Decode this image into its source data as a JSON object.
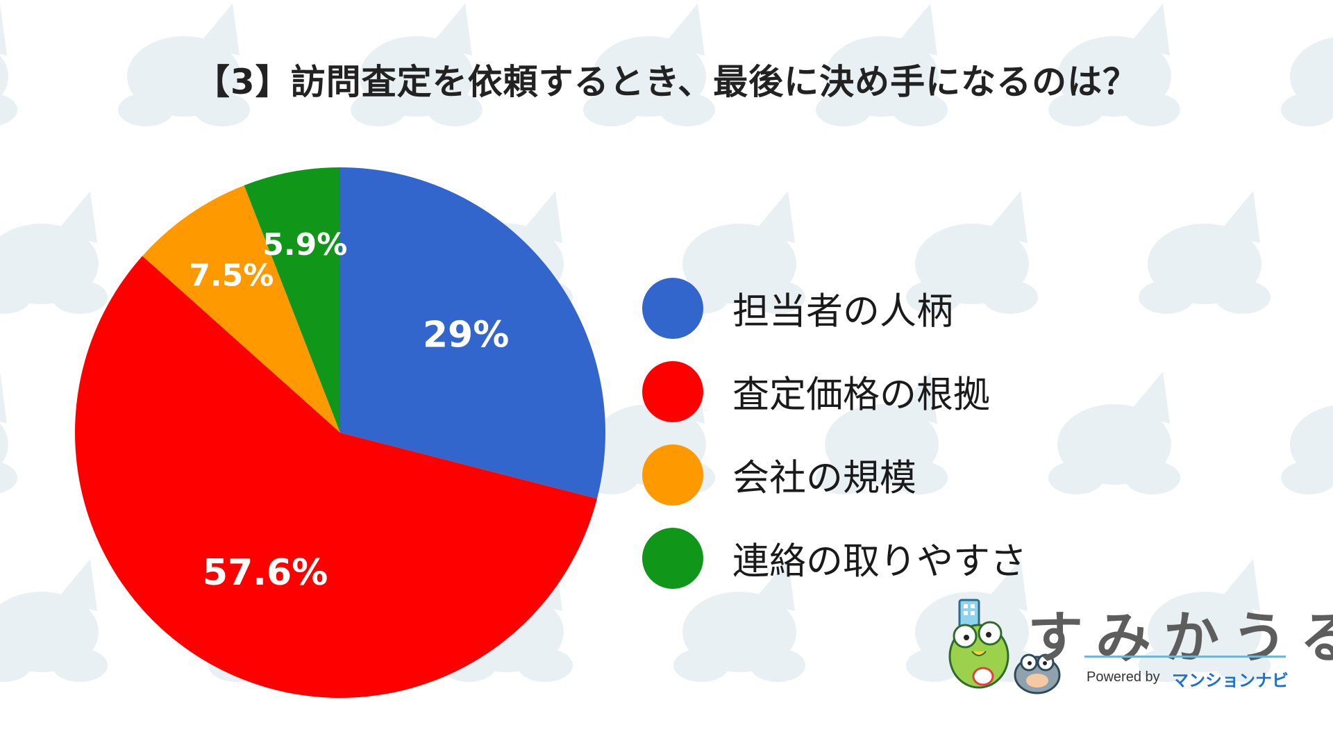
{
  "chart_data": {
    "type": "pie",
    "title": "【3】訪問査定を依頼するとき、最後に決め手になるのは？",
    "slices": [
      {
        "label": "担当者の人柄",
        "value": 29,
        "value_label": "29%",
        "color": "#3366cc"
      },
      {
        "label": "査定価格の根拠",
        "value": 57.6,
        "value_label": "57.6%",
        "color": "#ff0000"
      },
      {
        "label": "会社の規模",
        "value": 7.5,
        "value_label": "7.5%",
        "color": "#ff9900"
      },
      {
        "label": "連絡の取りやすさ",
        "value": 5.9,
        "value_label": "5.9%",
        "color": "#109618"
      }
    ],
    "start_angle": "12 o'clock",
    "direction": "clockwise",
    "legend": "right"
  },
  "logo": {
    "name": "すみかうる",
    "powered_by": "Powered by",
    "brand": "マンションナビ"
  },
  "colors": {
    "background": "#ffffff",
    "pattern": "#e9f0f3",
    "logo_rule": "#6fb6d9",
    "brand_blue": "#1e6fd0"
  }
}
